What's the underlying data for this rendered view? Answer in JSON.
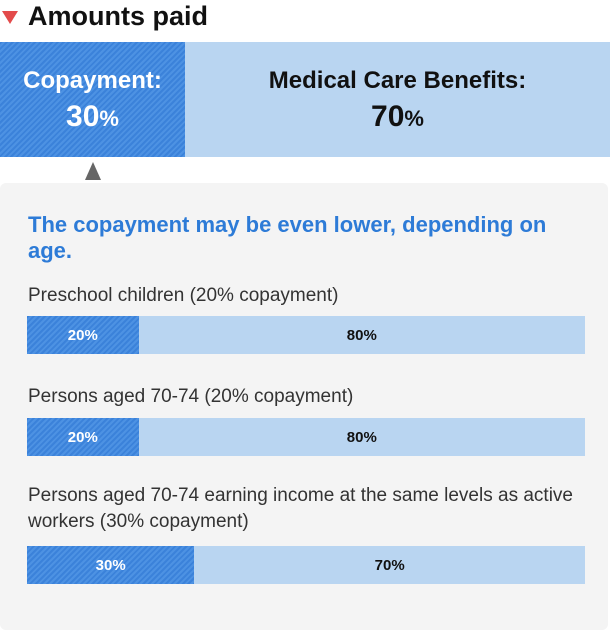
{
  "header": {
    "title": "Amounts paid",
    "icon": "triangle-down-icon",
    "icon_color": "#e34b4b"
  },
  "summary": {
    "copay_label": "Copayment:",
    "copay_value": "30",
    "benefit_label": "Medical Care Benefits:",
    "benefit_value": "70",
    "pct": "%"
  },
  "panel": {
    "heading": "The copayment may be even lower, depending on age."
  },
  "colors": {
    "copay": "#3b82da",
    "benefit": "#b9d5f1",
    "heading": "#2d7bd7"
  },
  "chart_data": {
    "type": "bar",
    "stacked": true,
    "orientation": "horizontal",
    "title": "Amounts paid",
    "categories": [
      "Preschool children (20% copayment)",
      "Persons aged 70-74 (20% copayment)",
      "Persons aged 70-74 earning income at the same levels as active workers (30% copayment)"
    ],
    "series": [
      {
        "name": "Copayment",
        "values": [
          20,
          20,
          30
        ]
      },
      {
        "name": "Medical Care Benefits",
        "values": [
          80,
          80,
          70
        ]
      }
    ],
    "labels": [
      [
        "20%",
        "80%"
      ],
      [
        "20%",
        "80%"
      ],
      [
        "30%",
        "70%"
      ]
    ],
    "xlim": [
      0,
      100
    ]
  }
}
